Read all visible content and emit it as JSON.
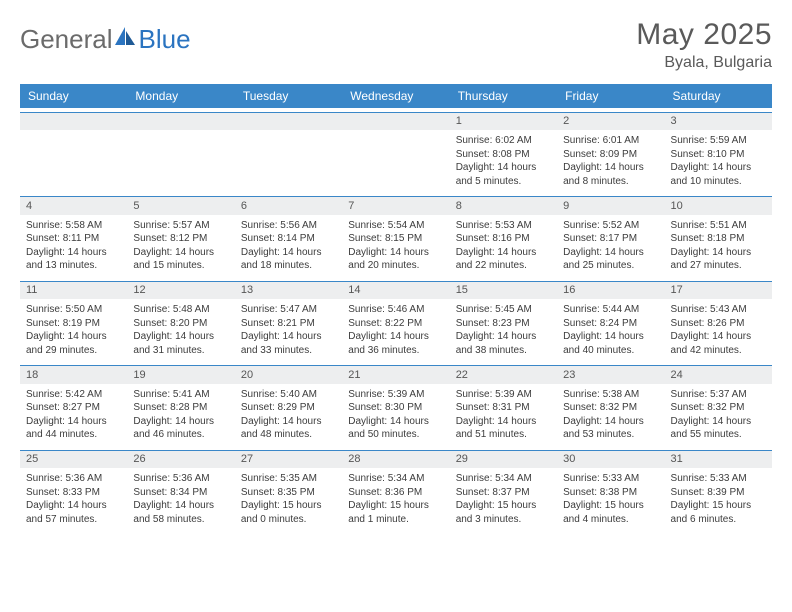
{
  "brand": {
    "text1": "General",
    "text2": "Blue"
  },
  "title": "May 2025",
  "location": "Byala, Bulgaria",
  "colors": {
    "header_bg": "#3a87c8",
    "header_text": "#ffffff",
    "date_bar_bg": "#edeeef",
    "date_text": "#565656",
    "body_text": "#3c3c3c",
    "rule": "#3a87c8",
    "title_text": "#5a5a5a",
    "logo_gray": "#6b6b6b",
    "logo_blue": "#2b74c0"
  },
  "day_names": [
    "Sunday",
    "Monday",
    "Tuesday",
    "Wednesday",
    "Thursday",
    "Friday",
    "Saturday"
  ],
  "weeks": [
    [
      null,
      null,
      null,
      null,
      {
        "d": "1",
        "sr": "Sunrise: 6:02 AM",
        "ss": "Sunset: 8:08 PM",
        "dl1": "Daylight: 14 hours",
        "dl2": "and 5 minutes."
      },
      {
        "d": "2",
        "sr": "Sunrise: 6:01 AM",
        "ss": "Sunset: 8:09 PM",
        "dl1": "Daylight: 14 hours",
        "dl2": "and 8 minutes."
      },
      {
        "d": "3",
        "sr": "Sunrise: 5:59 AM",
        "ss": "Sunset: 8:10 PM",
        "dl1": "Daylight: 14 hours",
        "dl2": "and 10 minutes."
      }
    ],
    [
      {
        "d": "4",
        "sr": "Sunrise: 5:58 AM",
        "ss": "Sunset: 8:11 PM",
        "dl1": "Daylight: 14 hours",
        "dl2": "and 13 minutes."
      },
      {
        "d": "5",
        "sr": "Sunrise: 5:57 AM",
        "ss": "Sunset: 8:12 PM",
        "dl1": "Daylight: 14 hours",
        "dl2": "and 15 minutes."
      },
      {
        "d": "6",
        "sr": "Sunrise: 5:56 AM",
        "ss": "Sunset: 8:14 PM",
        "dl1": "Daylight: 14 hours",
        "dl2": "and 18 minutes."
      },
      {
        "d": "7",
        "sr": "Sunrise: 5:54 AM",
        "ss": "Sunset: 8:15 PM",
        "dl1": "Daylight: 14 hours",
        "dl2": "and 20 minutes."
      },
      {
        "d": "8",
        "sr": "Sunrise: 5:53 AM",
        "ss": "Sunset: 8:16 PM",
        "dl1": "Daylight: 14 hours",
        "dl2": "and 22 minutes."
      },
      {
        "d": "9",
        "sr": "Sunrise: 5:52 AM",
        "ss": "Sunset: 8:17 PM",
        "dl1": "Daylight: 14 hours",
        "dl2": "and 25 minutes."
      },
      {
        "d": "10",
        "sr": "Sunrise: 5:51 AM",
        "ss": "Sunset: 8:18 PM",
        "dl1": "Daylight: 14 hours",
        "dl2": "and 27 minutes."
      }
    ],
    [
      {
        "d": "11",
        "sr": "Sunrise: 5:50 AM",
        "ss": "Sunset: 8:19 PM",
        "dl1": "Daylight: 14 hours",
        "dl2": "and 29 minutes."
      },
      {
        "d": "12",
        "sr": "Sunrise: 5:48 AM",
        "ss": "Sunset: 8:20 PM",
        "dl1": "Daylight: 14 hours",
        "dl2": "and 31 minutes."
      },
      {
        "d": "13",
        "sr": "Sunrise: 5:47 AM",
        "ss": "Sunset: 8:21 PM",
        "dl1": "Daylight: 14 hours",
        "dl2": "and 33 minutes."
      },
      {
        "d": "14",
        "sr": "Sunrise: 5:46 AM",
        "ss": "Sunset: 8:22 PM",
        "dl1": "Daylight: 14 hours",
        "dl2": "and 36 minutes."
      },
      {
        "d": "15",
        "sr": "Sunrise: 5:45 AM",
        "ss": "Sunset: 8:23 PM",
        "dl1": "Daylight: 14 hours",
        "dl2": "and 38 minutes."
      },
      {
        "d": "16",
        "sr": "Sunrise: 5:44 AM",
        "ss": "Sunset: 8:24 PM",
        "dl1": "Daylight: 14 hours",
        "dl2": "and 40 minutes."
      },
      {
        "d": "17",
        "sr": "Sunrise: 5:43 AM",
        "ss": "Sunset: 8:26 PM",
        "dl1": "Daylight: 14 hours",
        "dl2": "and 42 minutes."
      }
    ],
    [
      {
        "d": "18",
        "sr": "Sunrise: 5:42 AM",
        "ss": "Sunset: 8:27 PM",
        "dl1": "Daylight: 14 hours",
        "dl2": "and 44 minutes."
      },
      {
        "d": "19",
        "sr": "Sunrise: 5:41 AM",
        "ss": "Sunset: 8:28 PM",
        "dl1": "Daylight: 14 hours",
        "dl2": "and 46 minutes."
      },
      {
        "d": "20",
        "sr": "Sunrise: 5:40 AM",
        "ss": "Sunset: 8:29 PM",
        "dl1": "Daylight: 14 hours",
        "dl2": "and 48 minutes."
      },
      {
        "d": "21",
        "sr": "Sunrise: 5:39 AM",
        "ss": "Sunset: 8:30 PM",
        "dl1": "Daylight: 14 hours",
        "dl2": "and 50 minutes."
      },
      {
        "d": "22",
        "sr": "Sunrise: 5:39 AM",
        "ss": "Sunset: 8:31 PM",
        "dl1": "Daylight: 14 hours",
        "dl2": "and 51 minutes."
      },
      {
        "d": "23",
        "sr": "Sunrise: 5:38 AM",
        "ss": "Sunset: 8:32 PM",
        "dl1": "Daylight: 14 hours",
        "dl2": "and 53 minutes."
      },
      {
        "d": "24",
        "sr": "Sunrise: 5:37 AM",
        "ss": "Sunset: 8:32 PM",
        "dl1": "Daylight: 14 hours",
        "dl2": "and 55 minutes."
      }
    ],
    [
      {
        "d": "25",
        "sr": "Sunrise: 5:36 AM",
        "ss": "Sunset: 8:33 PM",
        "dl1": "Daylight: 14 hours",
        "dl2": "and 57 minutes."
      },
      {
        "d": "26",
        "sr": "Sunrise: 5:36 AM",
        "ss": "Sunset: 8:34 PM",
        "dl1": "Daylight: 14 hours",
        "dl2": "and 58 minutes."
      },
      {
        "d": "27",
        "sr": "Sunrise: 5:35 AM",
        "ss": "Sunset: 8:35 PM",
        "dl1": "Daylight: 15 hours",
        "dl2": "and 0 minutes."
      },
      {
        "d": "28",
        "sr": "Sunrise: 5:34 AM",
        "ss": "Sunset: 8:36 PM",
        "dl1": "Daylight: 15 hours",
        "dl2": "and 1 minute."
      },
      {
        "d": "29",
        "sr": "Sunrise: 5:34 AM",
        "ss": "Sunset: 8:37 PM",
        "dl1": "Daylight: 15 hours",
        "dl2": "and 3 minutes."
      },
      {
        "d": "30",
        "sr": "Sunrise: 5:33 AM",
        "ss": "Sunset: 8:38 PM",
        "dl1": "Daylight: 15 hours",
        "dl2": "and 4 minutes."
      },
      {
        "d": "31",
        "sr": "Sunrise: 5:33 AM",
        "ss": "Sunset: 8:39 PM",
        "dl1": "Daylight: 15 hours",
        "dl2": "and 6 minutes."
      }
    ]
  ]
}
